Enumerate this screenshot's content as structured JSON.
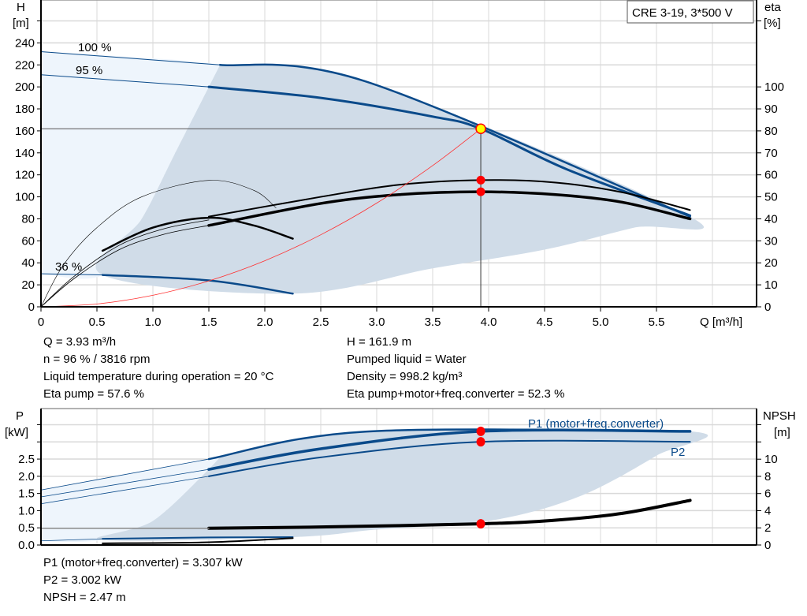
{
  "colors": {
    "envelope_dark": "#d0dce8",
    "envelope_light": "#eef5fc",
    "curve_blue": "#0a4a8a",
    "curve_black": "#000000",
    "system_curve": "#ff3030",
    "dot": "#ff0000",
    "duty_point": "#ffff00",
    "grid": "#d9d9d9"
  },
  "chart_data": [
    {
      "type": "line",
      "title": "CRE 3-19, 3*500 V",
      "xlabel": "Q [m³/h]",
      "ylabel": "H",
      "ylabel_unit": "[m]",
      "y2label": "eta",
      "y2label_unit": "[%]",
      "xlim": [
        0,
        6.4
      ],
      "ylim": [
        0,
        279
      ],
      "y2lim": [
        0,
        139.5
      ],
      "xticks": [
        "0",
        "0.5",
        "1.0",
        "1.5",
        "2.0",
        "2.5",
        "3.0",
        "3.5",
        "4.0",
        "4.5",
        "5.0",
        "5.5"
      ],
      "xtick_values": [
        0,
        0.5,
        1,
        1.5,
        2,
        2.5,
        3,
        3.5,
        4,
        4.5,
        5,
        5.5
      ],
      "yticks": [
        "0",
        "20",
        "40",
        "60",
        "80",
        "100",
        "120",
        "140",
        "160",
        "180",
        "200",
        "220",
        "240"
      ],
      "y2ticks": [
        "0",
        "10",
        "20",
        "30",
        "40",
        "50",
        "60",
        "70",
        "80",
        "90",
        "100"
      ],
      "grid": true,
      "annotations": [
        "100 %",
        "95 %",
        "36 %"
      ],
      "series": [
        {
          "kind": "H",
          "color": "blue",
          "width": 2.5,
          "points": [
            [
              1.6,
              220
            ],
            [
              2.9,
              205
            ],
            [
              5.8,
              82
            ]
          ]
        },
        {
          "kind": "H",
          "color": "blue",
          "width": 1,
          "points": [
            [
              0,
              232
            ],
            [
              1.6,
              220
            ]
          ]
        },
        {
          "kind": "H",
          "color": "blue",
          "width": 3,
          "points": [
            [
              1.5,
              200
            ],
            [
              2.5,
              190
            ],
            [
              3.5,
              173
            ],
            [
              3.93,
              161.9
            ],
            [
              4.7,
              125
            ],
            [
              5.8,
              83
            ]
          ]
        },
        {
          "kind": "H",
          "color": "blue",
          "width": 1,
          "points": [
            [
              0,
              211
            ],
            [
              1.5,
              200
            ]
          ]
        },
        {
          "kind": "H",
          "color": "blue",
          "width": 2.5,
          "points": [
            [
              0.55,
              29
            ],
            [
              1.5,
              24
            ],
            [
              2.25,
              12
            ]
          ]
        },
        {
          "kind": "H",
          "color": "blue",
          "width": 1,
          "points": [
            [
              0,
              30
            ],
            [
              0.55,
              29
            ]
          ]
        },
        {
          "kind": "eta",
          "color": "black",
          "width": 2,
          "points": [
            [
              1.5,
              41
            ],
            [
              2.5,
              50
            ],
            [
              3.2,
              55.5
            ],
            [
              3.93,
              57.6
            ],
            [
              4.6,
              56.5
            ],
            [
              5.2,
              52
            ],
            [
              5.8,
              44
            ]
          ]
        },
        {
          "kind": "eta",
          "color": "black",
          "width": 3.5,
          "points": [
            [
              1.5,
              37
            ],
            [
              2.5,
              47
            ],
            [
              3.2,
              51
            ],
            [
              3.93,
              52.3
            ],
            [
              4.6,
              51
            ],
            [
              5.2,
              47.5
            ],
            [
              5.8,
              40
            ]
          ]
        },
        {
          "kind": "eta",
          "color": "black",
          "width": 0.8,
          "points": [
            [
              0,
              0
            ],
            [
              0.3,
              14
            ],
            [
              0.7,
              28
            ],
            [
              1.1,
              35.5
            ],
            [
              1.5,
              39.5
            ]
          ]
        },
        {
          "kind": "eta",
          "color": "black",
          "width": 0.8,
          "points": [
            [
              0,
              0
            ],
            [
              0.3,
              13
            ],
            [
              0.7,
              26
            ],
            [
              1.1,
              33
            ],
            [
              1.5,
              37
            ]
          ]
        },
        {
          "kind": "H",
          "color": "black",
          "width": 0.6,
          "points": [
            [
              0,
              0
            ],
            [
              0.2,
              38
            ],
            [
              0.5,
              72
            ],
            [
              0.9,
              100
            ],
            [
              1.5,
              115
            ],
            [
              1.9,
              106
            ],
            [
              2.1,
              90
            ]
          ]
        },
        {
          "kind": "H",
          "color": "black",
          "width": 2.5,
          "points": [
            [
              0.55,
              51
            ],
            [
              1.0,
              72
            ],
            [
              1.5,
              81
            ],
            [
              1.9,
              74
            ],
            [
              2.25,
              62
            ]
          ]
        },
        {
          "kind": "H",
          "color": "red",
          "width": 0.8,
          "curve": "system",
          "points": [
            [
              0,
              0
            ],
            [
              0.5,
              2.6
            ],
            [
              1,
              10.5
            ],
            [
              1.5,
              23.6
            ],
            [
              2,
              41.9
            ],
            [
              2.5,
              65.5
            ],
            [
              3,
              94.3
            ],
            [
              3.5,
              128.4
            ],
            [
              3.93,
              161.9
            ]
          ]
        }
      ],
      "envelope_dark": [
        [
          1.6,
          220
        ],
        [
          2.9,
          205
        ],
        [
          5.8,
          82
        ],
        [
          5.3,
          72
        ],
        [
          4.5,
          52
        ],
        [
          3.5,
          35
        ],
        [
          2.25,
          12
        ],
        [
          0.55,
          29
        ],
        [
          0.9,
          80
        ],
        [
          1.2,
          140
        ],
        [
          1.5,
          200
        ]
      ],
      "envelope_light": [
        [
          0,
          232
        ],
        [
          1.6,
          220
        ],
        [
          1.5,
          200
        ],
        [
          1.2,
          140
        ],
        [
          0.9,
          80
        ],
        [
          0.55,
          29
        ],
        [
          0,
          30
        ]
      ],
      "duty_point": {
        "Q": 3.93,
        "H": 161.9,
        "eta_pump": 57.6,
        "eta_total": 52.3
      }
    },
    {
      "type": "line",
      "ylabel": "P",
      "ylabel_unit": "[kW]",
      "y2label": "NPSH",
      "y2label_unit": "[m]",
      "xlim": [
        0,
        6.4
      ],
      "ylim": [
        0,
        3.97
      ],
      "y2lim": [
        0,
        15.9
      ],
      "yticks": [
        "0.0",
        "0.5",
        "1.0",
        "1.5",
        "2.0",
        "2.5"
      ],
      "y2ticks": [
        "0",
        "2",
        "4",
        "6",
        "8",
        "10"
      ],
      "grid": true,
      "labels": [
        "P1 (motor+freq.converter)",
        "P2"
      ],
      "series": [
        {
          "kind": "P",
          "color": "blue",
          "width": 2.5,
          "points": [
            [
              1.5,
              2.5
            ],
            [
              2.9,
              3.3
            ],
            [
              5.8,
              3.307
            ]
          ]
        },
        {
          "kind": "P",
          "color": "blue",
          "width": 0.8,
          "points": [
            [
              0,
              1.6
            ],
            [
              1.5,
              2.5
            ]
          ]
        },
        {
          "kind": "P",
          "color": "blue",
          "width": 3.5,
          "points": [
            [
              1.5,
              2.2
            ],
            [
              2.5,
              2.8
            ],
            [
              3.93,
              3.307
            ],
            [
              5.8,
              3.307
            ]
          ]
        },
        {
          "kind": "P",
          "color": "blue",
          "width": 0.8,
          "points": [
            [
              0,
              1.4
            ],
            [
              1.5,
              2.2
            ]
          ]
        },
        {
          "kind": "P",
          "color": "blue",
          "width": 2,
          "points": [
            [
              1.5,
              2.0
            ],
            [
              2.5,
              2.55
            ],
            [
              3.93,
              3.002
            ],
            [
              5.8,
              3.002
            ]
          ]
        },
        {
          "kind": "P",
          "color": "blue",
          "width": 0.8,
          "points": [
            [
              0,
              1.2
            ],
            [
              1.5,
              2.0
            ]
          ]
        },
        {
          "kind": "P",
          "color": "blue",
          "width": 2,
          "points": [
            [
              0.55,
              0.18
            ],
            [
              1.5,
              0.22
            ],
            [
              2.25,
              0.23
            ]
          ]
        },
        {
          "kind": "P",
          "color": "blue",
          "width": 0.8,
          "points": [
            [
              0,
              0.12
            ],
            [
              0.55,
              0.18
            ]
          ]
        },
        {
          "kind": "P",
          "color": "black",
          "width": 2,
          "points": [
            [
              0.55,
              0.05
            ],
            [
              1.5,
              0.08
            ],
            [
              2.25,
              0.2
            ]
          ]
        },
        {
          "kind": "NPSH",
          "color": "black",
          "width": 4,
          "points": [
            [
              1.5,
              1.95
            ],
            [
              2.5,
              2.1
            ],
            [
              3.93,
              2.47
            ],
            [
              4.6,
              2.9
            ],
            [
              5.2,
              3.7
            ],
            [
              5.8,
              5.2
            ]
          ]
        },
        {
          "kind": "NPSH",
          "color": "grey",
          "width": 1.5,
          "points": [
            [
              0,
              1.95
            ],
            [
              1.5,
              1.95
            ]
          ]
        }
      ],
      "envelope_dark": [
        [
          1.6,
          2.55
        ],
        [
          2.9,
          3.3
        ],
        [
          5.8,
          3.307
        ],
        [
          5.5,
          2.6
        ],
        [
          4.8,
          1.4
        ],
        [
          4.0,
          0.7
        ],
        [
          3.0,
          0.45
        ],
        [
          2.25,
          0.23
        ],
        [
          0.55,
          0.15
        ],
        [
          1.0,
          0.7
        ],
        [
          1.5,
          2.2
        ]
      ],
      "envelope_light": [
        [
          0,
          1.6
        ],
        [
          1.6,
          2.55
        ],
        [
          1.5,
          2.2
        ],
        [
          1.0,
          0.7
        ],
        [
          0.55,
          0.15
        ],
        [
          0,
          0.1
        ]
      ],
      "duty_points": {
        "P1": 3.307,
        "P2": 3.002,
        "NPSH": 2.47
      }
    }
  ],
  "info_top_left": [
    "Q = 3.93 m³/h",
    "n = 96 % / 3816 rpm",
    "Liquid temperature during operation = 20 °C",
    "Eta pump = 57.6 %"
  ],
  "info_top_right": [
    "H = 161.9 m",
    "Pumped liquid = Water",
    "Density = 998.2 kg/m³",
    "Eta pump+motor+freq.converter = 52.3 %"
  ],
  "info_bottom": [
    "P1 (motor+freq.converter) = 3.307 kW",
    "P2 = 3.002 kW",
    "NPSH = 2.47 m"
  ]
}
